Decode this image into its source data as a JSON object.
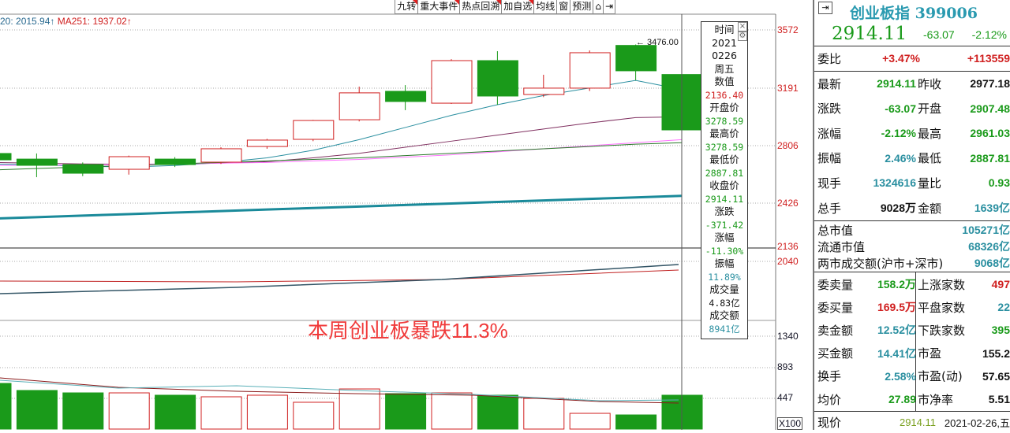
{
  "toolbar": [
    "九转",
    "重大事件",
    "热点回溯",
    "加自选",
    "均线",
    "窗",
    "预测",
    "⌂",
    "⇥"
  ],
  "legend": {
    "ma_a": "20: 2015.94↑",
    "ma_b": "MA251: 1937.02↑"
  },
  "price_axis": [
    "3572",
    "3191",
    "2806",
    "2426",
    "2136",
    "2040"
  ],
  "volume_axis": [
    "1340",
    "893",
    "447",
    "X100"
  ],
  "high_label": "← 3476.00",
  "overlay_text": "本周创业板暴跌11.3%",
  "tooltip": [
    {
      "t": "时间",
      "c": "b"
    },
    {
      "t": "2021",
      "c": "b"
    },
    {
      "t": "0226",
      "c": "b"
    },
    {
      "t": "周五",
      "c": "b"
    },
    {
      "t": "数值",
      "c": "b"
    },
    {
      "t": "2136.40",
      "c": "r"
    },
    {
      "t": "开盘价",
      "c": "b"
    },
    {
      "t": "3278.59",
      "c": "g"
    },
    {
      "t": "最高价",
      "c": "b"
    },
    {
      "t": "3278.59",
      "c": "g"
    },
    {
      "t": "最低价",
      "c": "b"
    },
    {
      "t": "2887.81",
      "c": "g"
    },
    {
      "t": "收盘价",
      "c": "b"
    },
    {
      "t": "2914.11",
      "c": "g"
    },
    {
      "t": "涨跌",
      "c": "b"
    },
    {
      "t": "-371.42",
      "c": "g"
    },
    {
      "t": "涨幅",
      "c": "b"
    },
    {
      "t": "-11.30%",
      "c": "g"
    },
    {
      "t": "振幅",
      "c": "b"
    },
    {
      "t": "11.89%",
      "c": "t"
    },
    {
      "t": "成交量",
      "c": "b"
    },
    {
      "t": "4.83亿",
      "c": "b"
    },
    {
      "t": "成交额",
      "c": "b"
    },
    {
      "t": "8941亿",
      "c": "t"
    }
  ],
  "colors": {
    "up": "#d02020",
    "down": "#1a9a1a",
    "teal": "#2a8fa0"
  },
  "chart_data": {
    "type": "candlestick",
    "candles": [
      [
        2759,
        2770,
        2700,
        2717
      ],
      [
        2722,
        2759,
        2603,
        2681
      ],
      [
        2686,
        2700,
        2610,
        2629
      ],
      [
        2655,
        2745,
        2620,
        2738
      ],
      [
        2722,
        2735,
        2670,
        2686
      ],
      [
        2702,
        2800,
        2690,
        2790
      ],
      [
        2805,
        2855,
        2790,
        2847
      ],
      [
        2852,
        2980,
        2840,
        2976
      ],
      [
        2981,
        3199,
        2970,
        3158
      ],
      [
        3168,
        3209,
        3044,
        3101
      ],
      [
        3090,
        3380,
        3085,
        3370
      ],
      [
        3370,
        3432,
        3080,
        3137
      ],
      [
        3147,
        3277,
        3130,
        3189
      ],
      [
        3189,
        3437,
        3170,
        3422
      ],
      [
        3470,
        3476,
        3240,
        3303
      ],
      [
        3278.59,
        3278.59,
        2887.81,
        2914.11
      ]
    ],
    "volume_x100": [
      665,
      562,
      527,
      527,
      493,
      470,
      493,
      390,
      584,
      516,
      527,
      493,
      447,
      229,
      206,
      493
    ],
    "ma_lines": [
      {
        "color": "#2a8fa0",
        "values": [
          2690,
          2685,
          2675,
          2670,
          2680,
          2700,
          2730,
          2780,
          2850,
          2930,
          3010,
          3080,
          3140,
          3190,
          3240,
          3180
        ]
      },
      {
        "color": "#803060",
        "values": [
          2700,
          2695,
          2690,
          2688,
          2690,
          2695,
          2705,
          2730,
          2760,
          2800,
          2840,
          2880,
          2920,
          2960,
          2995,
          3000
        ]
      },
      {
        "color": "#ff70ff",
        "values": [
          2680,
          2682,
          2684,
          2686,
          2690,
          2695,
          2700,
          2710,
          2720,
          2735,
          2750,
          2770,
          2790,
          2810,
          2830,
          2850
        ]
      },
      {
        "color": "#2a7a2a",
        "values": [
          2650,
          2660,
          2670,
          2680,
          2690,
          2700,
          2710,
          2720,
          2730,
          2745,
          2760,
          2775,
          2790,
          2805,
          2820,
          2830
        ]
      },
      {
        "color": "#1a8a9a",
        "values": [
          2330,
          2340,
          2350,
          2360,
          2370,
          2380,
          2390,
          2400,
          2410,
          2420,
          2430,
          2440,
          2450,
          2460,
          2470,
          2480
        ]
      }
    ]
  },
  "panel": {
    "title": "创业板指 399006",
    "price": "2914.11",
    "change": "-63.07",
    "pct": "-2.12%",
    "webi": {
      "label": "委比",
      "pct": "+3.47%",
      "val": "+113559"
    },
    "rows": [
      [
        "最新",
        "2914.11",
        "g",
        "昨收",
        "2977.18",
        "b"
      ],
      [
        "涨跌",
        "-63.07",
        "g",
        "开盘",
        "2907.48",
        "g"
      ],
      [
        "涨幅",
        "-2.12%",
        "g",
        "最高",
        "2961.03",
        "g"
      ],
      [
        "振幅",
        "2.46%",
        "t",
        "最低",
        "2887.81",
        "g"
      ],
      [
        "现手",
        "1324616",
        "t",
        "量比",
        "0.93",
        "g"
      ],
      [
        "总手",
        "9028万",
        "b",
        "金额",
        "1639亿",
        "t"
      ]
    ],
    "market": [
      [
        "总市值",
        "105271亿"
      ],
      [
        "流通市值",
        "68326亿"
      ],
      [
        "两市成交额(沪市+深市)",
        "9068亿"
      ]
    ],
    "rows2": [
      [
        "委卖量",
        "158.2万",
        "g",
        "上涨家数",
        "497",
        "r"
      ],
      [
        "委买量",
        "169.5万",
        "r",
        "平盘家数",
        "22",
        "t"
      ],
      [
        "卖金额",
        "12.52亿",
        "t",
        "下跌家数",
        "395",
        "g"
      ],
      [
        "买金额",
        "14.41亿",
        "t",
        "市盈",
        "155.2",
        "b"
      ],
      [
        "换手",
        "2.58%",
        "t",
        "市盈(动)",
        "57.65",
        "b"
      ],
      [
        "均价",
        "27.89",
        "g",
        "市净率",
        "5.51",
        "b"
      ]
    ],
    "footer": {
      "label": "现价",
      "price": "2914.11",
      "date": "2021-02-26,五"
    }
  }
}
